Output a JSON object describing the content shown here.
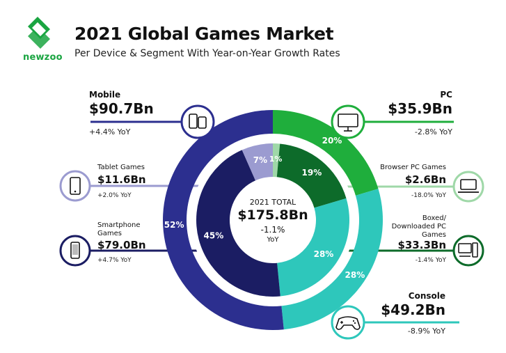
{
  "brand": {
    "name": "newzoo",
    "color": "#1aa541"
  },
  "header": {
    "title": "2021 Global Games Market",
    "subtitle": "Per Device & Segment With Year-on-Year Growth Rates"
  },
  "chart_data": {
    "type": "pie",
    "total": {
      "label": "2021 TOTAL",
      "value": "$175.8Bn",
      "yoy": "-1.1%",
      "yoy_label": "YoY"
    },
    "outer_ring": [
      {
        "name": "Mobile",
        "value_bn": 90.7,
        "value_label": "$90.7Bn",
        "yoy": "+4.4% YoY",
        "percent": 52,
        "percent_label": "52%",
        "color": "#2c2f8f"
      },
      {
        "name": "PC",
        "value_bn": 35.9,
        "value_label": "$35.9Bn",
        "yoy": "-2.8% YoY",
        "percent": 20,
        "percent_label": "20%",
        "color": "#1fae3c"
      },
      {
        "name": "Console",
        "value_bn": 49.2,
        "value_label": "$49.2Bn",
        "yoy": "-8.9% YoY",
        "percent": 28,
        "percent_label": "28%",
        "color": "#2ec7bb"
      }
    ],
    "inner_ring": [
      {
        "name": "Smartphone Games",
        "value_bn": 79.0,
        "value_label": "$79.0Bn",
        "yoy": "+4.7% YoY",
        "percent": 45,
        "percent_label": "45%",
        "color": "#1b1d63"
      },
      {
        "name": "Tablet Games",
        "value_bn": 11.6,
        "value_label": "$11.6Bn",
        "yoy": "+2.0% YoY",
        "percent": 7,
        "percent_label": "7%",
        "color": "#9b9bd0"
      },
      {
        "name": "Browser PC Games",
        "value_bn": 2.6,
        "value_label": "$2.6Bn",
        "yoy": "-18.0% YoY",
        "percent": 1,
        "percent_label": "1%",
        "color": "#9fd8a8"
      },
      {
        "name": "Boxed/ Downloaded PC Games",
        "value_bn": 33.3,
        "value_label": "$33.3Bn",
        "yoy": "-1.4% YoY",
        "percent": 19,
        "percent_label": "19%",
        "color": "#0d6b2a"
      },
      {
        "name": "Console",
        "value_bn": 49.2,
        "value_label": "$49.2Bn",
        "yoy": "-8.9% YoY",
        "percent": 28,
        "percent_label": "28%",
        "color": "#2ec7bb"
      }
    ]
  },
  "icons": {
    "mobile": "devices-icon",
    "tablet": "tablet-icon",
    "smartphone": "smartphone-icon",
    "pc": "monitor-icon",
    "browser": "laptop-icon",
    "boxed": "desktop-tower-icon",
    "console": "gamepad-icon"
  }
}
